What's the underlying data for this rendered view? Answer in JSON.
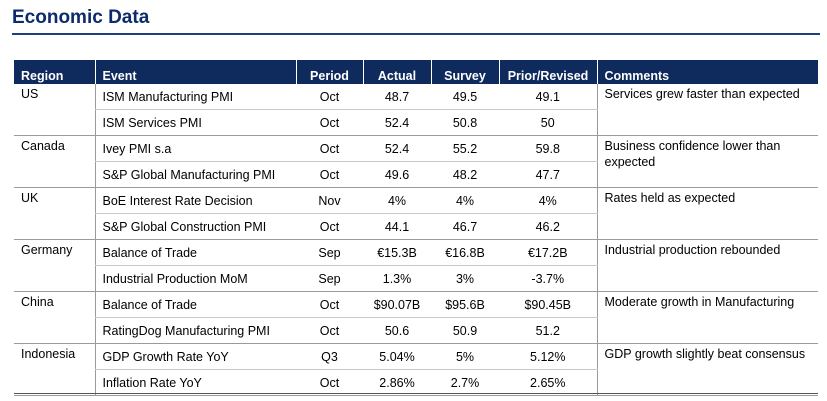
{
  "title": "Economic Data",
  "columns": {
    "region": "Region",
    "event": "Event",
    "period": "Period",
    "actual": "Actual",
    "survey": "Survey",
    "prior": "Prior/Revised",
    "comments": "Comments"
  },
  "groups": [
    {
      "region": "US",
      "comment": "Services grew faster than expected",
      "rows": [
        {
          "event": "ISM Manufacturing PMI",
          "period": "Oct",
          "actual": "48.7",
          "survey": "49.5",
          "prior": "49.1"
        },
        {
          "event": "ISM Services PMI",
          "period": "Oct",
          "actual": "52.4",
          "survey": "50.8",
          "prior": "50"
        }
      ]
    },
    {
      "region": "Canada",
      "comment": "Business confidence lower than expected",
      "rows": [
        {
          "event": "Ivey PMI s.a",
          "period": "Oct",
          "actual": "52.4",
          "survey": "55.2",
          "prior": "59.8"
        },
        {
          "event": "S&P Global Manufacturing PMI",
          "period": "Oct",
          "actual": "49.6",
          "survey": "48.2",
          "prior": "47.7"
        }
      ]
    },
    {
      "region": "UK",
      "comment": "Rates held as expected",
      "rows": [
        {
          "event": "BoE Interest Rate Decision",
          "period": "Nov",
          "actual": "4%",
          "survey": "4%",
          "prior": "4%"
        },
        {
          "event": "S&P Global Construction PMI",
          "period": "Oct",
          "actual": "44.1",
          "survey": "46.7",
          "prior": "46.2"
        }
      ]
    },
    {
      "region": "Germany",
      "comment": "Industrial production rebounded",
      "rows": [
        {
          "event": "Balance of Trade",
          "period": "Sep",
          "actual": "€15.3B",
          "survey": "€16.8B",
          "prior": "€17.2B"
        },
        {
          "event": "Industrial Production MoM",
          "period": "Sep",
          "actual": "1.3%",
          "survey": "3%",
          "prior": "-3.7%"
        }
      ]
    },
    {
      "region": "China",
      "comment": "Moderate growth in Manufacturing",
      "rows": [
        {
          "event": "Balance of Trade",
          "period": "Oct",
          "actual": "$90.07B",
          "survey": "$95.6B",
          "prior": "$90.45B"
        },
        {
          "event": "RatingDog Manufacturing PMI",
          "period": "Oct",
          "actual": "50.6",
          "survey": "50.9",
          "prior": "51.2"
        }
      ]
    },
    {
      "region": "Indonesia",
      "comment": "GDP growth slightly beat consensus",
      "rows": [
        {
          "event": "GDP Growth Rate YoY",
          "period": "Q3",
          "actual": "5.04%",
          "survey": "5%",
          "prior": "5.12%"
        },
        {
          "event": "Inflation Rate YoY",
          "period": "Oct",
          "actual": "2.86%",
          "survey": "2.7%",
          "prior": "2.65%"
        }
      ]
    }
  ]
}
